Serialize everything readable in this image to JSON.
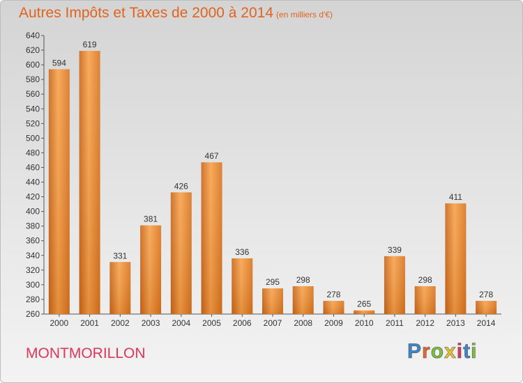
{
  "chart_data": {
    "type": "bar",
    "title": "Autres Impôts et Taxes de 2000 à 2014",
    "unit_label": "(en milliers d'€)",
    "xlabel": "",
    "ylabel": "",
    "categories": [
      "2000",
      "2001",
      "2002",
      "2003",
      "2004",
      "2005",
      "2006",
      "2007",
      "2008",
      "2009",
      "2010",
      "2011",
      "2012",
      "2013",
      "2014"
    ],
    "values": [
      594,
      619,
      331,
      381,
      426,
      467,
      336,
      295,
      298,
      278,
      265,
      339,
      298,
      411,
      278
    ],
    "ylim": [
      260,
      640
    ],
    "yticks": [
      260,
      280,
      300,
      320,
      340,
      360,
      380,
      400,
      420,
      440,
      460,
      480,
      500,
      520,
      540,
      560,
      580,
      600,
      620,
      640
    ],
    "grid": false,
    "bar_color": "#f5922e"
  },
  "footer": {
    "commune": "MONTMORILLON",
    "brand": "Proxiti",
    "brand_letter_colors": [
      "#3a86c8",
      "#e8672a",
      "#7cbf3a",
      "#e8c32a",
      "#d8385a",
      "#3a86c8",
      "#7cbf3a"
    ]
  }
}
